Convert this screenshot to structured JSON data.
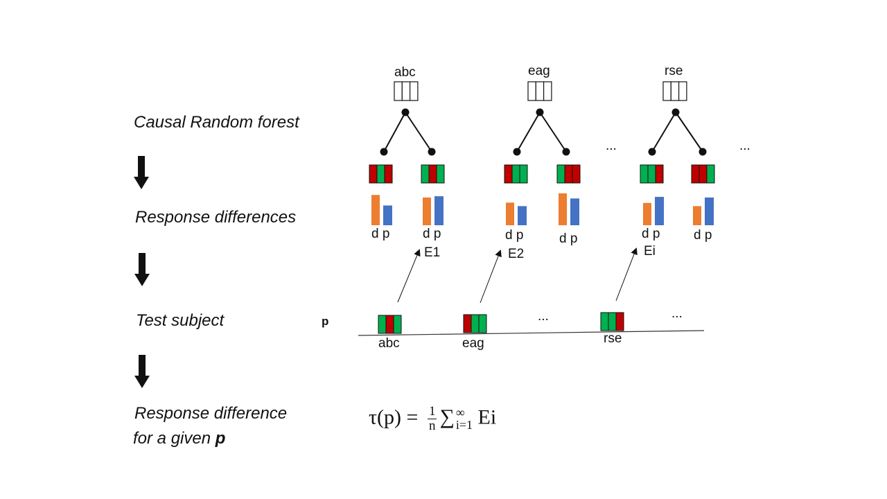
{
  "steps": {
    "forest": "Causal Random forest",
    "response": "Response differences",
    "test": "Test subject",
    "given_line1": "Response difference",
    "given_line2_prefix": "for a given ",
    "given_line2_var": "p"
  },
  "trees": [
    {
      "name": "abc",
      "estimate": "E1"
    },
    {
      "name": "eag",
      "estimate": "E2"
    },
    {
      "name": "rse",
      "estimate": "Ei"
    }
  ],
  "leaf_label": "d p",
  "ellipsis": "...",
  "test_subject": {
    "var": "p",
    "features": [
      "abc",
      "eag",
      "rse"
    ]
  },
  "formula": {
    "lhs": "τ(p) = ",
    "frac_num": "1",
    "frac_den": "n",
    "sum": "∑",
    "upper": "∞",
    "lower": "i=1",
    "term": " Ei"
  },
  "colors": {
    "red": "#c00000",
    "green": "#00b050",
    "orange": "#ed7d31",
    "blue": "#4472c4"
  },
  "bar_values": [
    [
      [
        0.95,
        0.62
      ],
      [
        0.87,
        0.91
      ]
    ],
    [
      [
        0.71,
        0.6
      ],
      [
        1.0,
        0.84
      ]
    ],
    [
      [
        0.7,
        0.89
      ],
      [
        0.6,
        0.87
      ]
    ]
  ]
}
